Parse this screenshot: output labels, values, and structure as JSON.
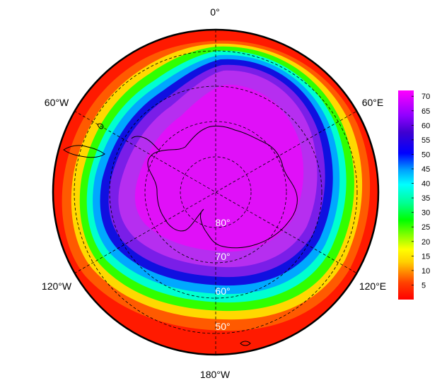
{
  "map": {
    "projection": "south-polar-stereographic",
    "longitude_labels": {
      "top": "0°",
      "upper_right": "60°E",
      "lower_right": "120°E",
      "bottom": "180°W",
      "lower_left": "120°W",
      "upper_left": "60°W"
    },
    "latitude_labels": [
      "80°",
      "70°",
      "60°",
      "50°"
    ],
    "field_colormap": "rainbow (red → yellow → green → cyan → blue → purple → magenta)",
    "field_description": "polar vortex / ozone-hole-shaped field, high (magenta) over Antarctica, low (red) in mid-latitudes"
  },
  "colorbar": {
    "ticks": [
      "70",
      "65",
      "60",
      "55",
      "50",
      "45",
      "40",
      "35",
      "30",
      "25",
      "20",
      "15",
      "10",
      "5"
    ],
    "min": 0,
    "max": 72,
    "colors": [
      "#ff0000",
      "#ff6a00",
      "#ffd000",
      "#ffff00",
      "#80ff00",
      "#00ff00",
      "#00ff80",
      "#00ffff",
      "#00a0ff",
      "#0000ff",
      "#3000c0",
      "#8000ff",
      "#c000ff",
      "#ff00ff"
    ]
  }
}
